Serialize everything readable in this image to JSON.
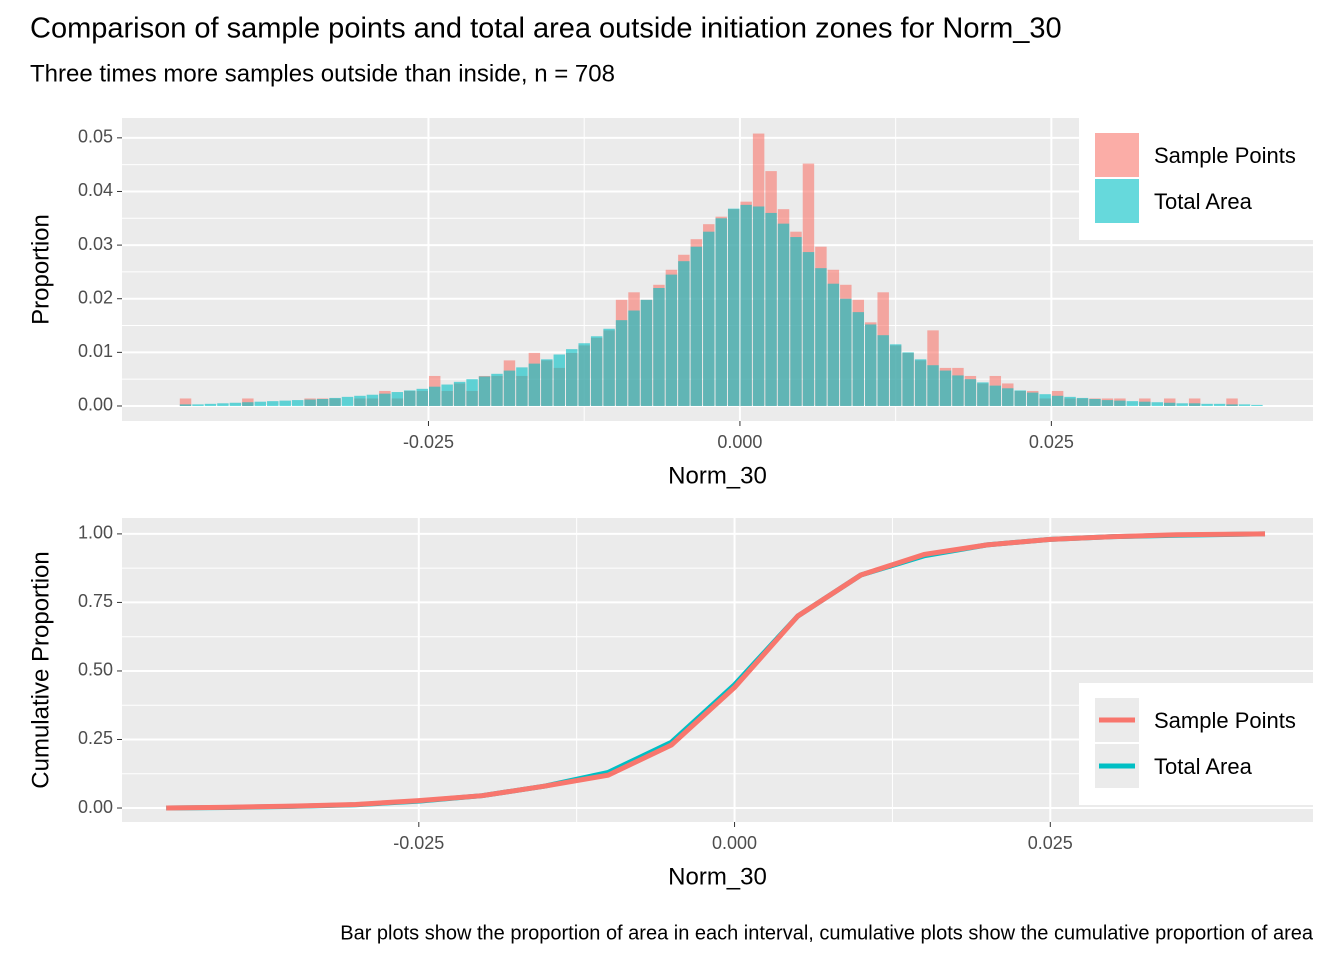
{
  "title": "Comparison of sample points and total area outside initiation zones for Norm_30",
  "subtitle": "Three times more samples outside than inside, n = 708",
  "caption": "Bar plots show the proportion of area in each interval, cumulative plots show the cumulative proportion of area",
  "chart_data": [
    {
      "type": "histogram",
      "xlabel": "Norm_30",
      "ylabel": "Proportion",
      "bins": [
        -0.045,
        -0.044,
        -0.043,
        -0.042,
        -0.041,
        -0.04,
        -0.039,
        -0.038,
        -0.037,
        -0.036,
        -0.035,
        -0.034,
        -0.033,
        -0.032,
        -0.031,
        -0.03,
        -0.029,
        -0.028,
        -0.027,
        -0.026,
        -0.025,
        -0.024,
        -0.023,
        -0.022,
        -0.021,
        -0.02,
        -0.019,
        -0.018,
        -0.017,
        -0.016,
        -0.015,
        -0.014,
        -0.013,
        -0.012,
        -0.011,
        -0.01,
        -0.009,
        -0.008,
        -0.007,
        -0.006,
        -0.005,
        -0.004,
        -0.003,
        -0.002,
        -0.001,
        0,
        0.001,
        0.002,
        0.003,
        0.004,
        0.005,
        0.006,
        0.007,
        0.008,
        0.009,
        0.01,
        0.011,
        0.012,
        0.013,
        0.014,
        0.015,
        0.016,
        0.017,
        0.018,
        0.019,
        0.02,
        0.021,
        0.022,
        0.023,
        0.024,
        0.025,
        0.026,
        0.027,
        0.028,
        0.029,
        0.03,
        0.031,
        0.032,
        0.033,
        0.034,
        0.035,
        0.036,
        0.037,
        0.038,
        0.039,
        0.04,
        0.041,
        0.042
      ],
      "series": [
        {
          "name": "Sample Points",
          "color": "#F8766D",
          "values": [
            0.0014,
            0,
            0,
            0,
            0,
            0.0014,
            0,
            0,
            0,
            0,
            0.0014,
            0.0014,
            0.0014,
            0,
            0.0014,
            0.0014,
            0.0028,
            0.0014,
            0.0028,
            0.0028,
            0.0056,
            0.0028,
            0.0042,
            0.0028,
            0.0056,
            0.0056,
            0.0085,
            0.0056,
            0.0099,
            0.0085,
            0.0071,
            0.0099,
            0.0113,
            0.0127,
            0.0141,
            0.0198,
            0.0212,
            0.0198,
            0.0226,
            0.0254,
            0.0282,
            0.0311,
            0.0339,
            0.0353,
            0.0367,
            0.0381,
            0.0508,
            0.0438,
            0.0367,
            0.0325,
            0.0452,
            0.0297,
            0.0254,
            0.0226,
            0.0198,
            0.0156,
            0.0212,
            0.0113,
            0.0099,
            0.0085,
            0.0141,
            0.0071,
            0.0071,
            0.0056,
            0.0042,
            0.0056,
            0.0042,
            0.0028,
            0.0028,
            0.0014,
            0.0028,
            0.0014,
            0.0014,
            0.0014,
            0.0014,
            0.0014,
            0,
            0.0014,
            0,
            0.0014,
            0,
            0.0014,
            0,
            0,
            0.0014,
            0,
            0
          ]
        },
        {
          "name": "Total Area",
          "color": "#00BFC4",
          "values": [
            0.0003,
            0.0003,
            0.0004,
            0.0005,
            0.0006,
            0.0007,
            0.0008,
            0.0009,
            0.001,
            0.0011,
            0.0012,
            0.0013,
            0.0015,
            0.0017,
            0.0019,
            0.0021,
            0.0023,
            0.0026,
            0.0029,
            0.0032,
            0.0036,
            0.004,
            0.0045,
            0.005,
            0.0055,
            0.006,
            0.0066,
            0.0072,
            0.0079,
            0.0087,
            0.0096,
            0.0106,
            0.0117,
            0.013,
            0.0144,
            0.016,
            0.0178,
            0.0198,
            0.022,
            0.0245,
            0.027,
            0.0297,
            0.0325,
            0.035,
            0.0368,
            0.0375,
            0.0372,
            0.036,
            0.034,
            0.0315,
            0.0287,
            0.0257,
            0.0228,
            0.02,
            0.0175,
            0.0152,
            0.0132,
            0.0115,
            0.01,
            0.0087,
            0.0076,
            0.0066,
            0.0057,
            0.005,
            0.0044,
            0.0038,
            0.0033,
            0.0029,
            0.0025,
            0.0022,
            0.0019,
            0.0017,
            0.0015,
            0.0013,
            0.0011,
            0.001,
            0.0009,
            0.0008,
            0.0007,
            0.0006,
            0.0005,
            0.0005,
            0.0004,
            0.0004,
            0.0003,
            0.0003,
            0.0002
          ]
        }
      ],
      "xlim": [
        -0.0496,
        0.046
      ],
      "ylim": [
        -0.0028,
        0.0537
      ],
      "xticks": [
        -0.025,
        {
          "value": 0,
          "label": "0.000"
        },
        0.025
      ],
      "yticks": [
        {
          "value": 0,
          "label": "0.00"
        },
        {
          "value": 0.01,
          "label": "0.01"
        },
        {
          "value": 0.02,
          "label": "0.02"
        },
        {
          "value": 0.03,
          "label": "0.03"
        },
        {
          "value": 0.04,
          "label": "0.04"
        },
        {
          "value": 0.05,
          "label": "0.05"
        }
      ],
      "grid": true,
      "legend": "top-right"
    },
    {
      "type": "line",
      "xlabel": "Norm_30",
      "ylabel": "Cumulative Proportion",
      "x": [
        -0.045,
        -0.04,
        -0.035,
        -0.03,
        -0.025,
        -0.02,
        -0.015,
        -0.01,
        -0.005,
        0,
        0.005,
        0.01,
        0.015,
        0.02,
        0.025,
        0.03,
        0.035,
        0.042
      ],
      "series": [
        {
          "name": "Sample Points",
          "color": "#F8766D",
          "values": [
            0,
            0.003,
            0.007,
            0.013,
            0.027,
            0.045,
            0.08,
            0.12,
            0.23,
            0.44,
            0.7,
            0.85,
            0.925,
            0.96,
            0.98,
            0.99,
            0.997,
            1.0
          ]
        },
        {
          "name": "Total Area",
          "color": "#00BFC4",
          "values": [
            0,
            0.002,
            0.006,
            0.012,
            0.025,
            0.045,
            0.08,
            0.13,
            0.24,
            0.45,
            0.7,
            0.85,
            0.92,
            0.96,
            0.98,
            0.99,
            0.995,
            1.0
          ]
        }
      ],
      "xlim": [
        -0.0485,
        0.0458
      ],
      "ylim": [
        -0.051,
        1.058
      ],
      "xticks": [
        -0.025,
        {
          "value": 0,
          "label": "0.000"
        },
        0.025
      ],
      "yticks": [
        {
          "value": 0,
          "label": "0.00"
        },
        0.25,
        {
          "value": 0.5,
          "label": "0.50"
        },
        0.75,
        {
          "value": 1,
          "label": "1.00"
        }
      ],
      "grid": true,
      "legend": "bottom-right"
    }
  ]
}
